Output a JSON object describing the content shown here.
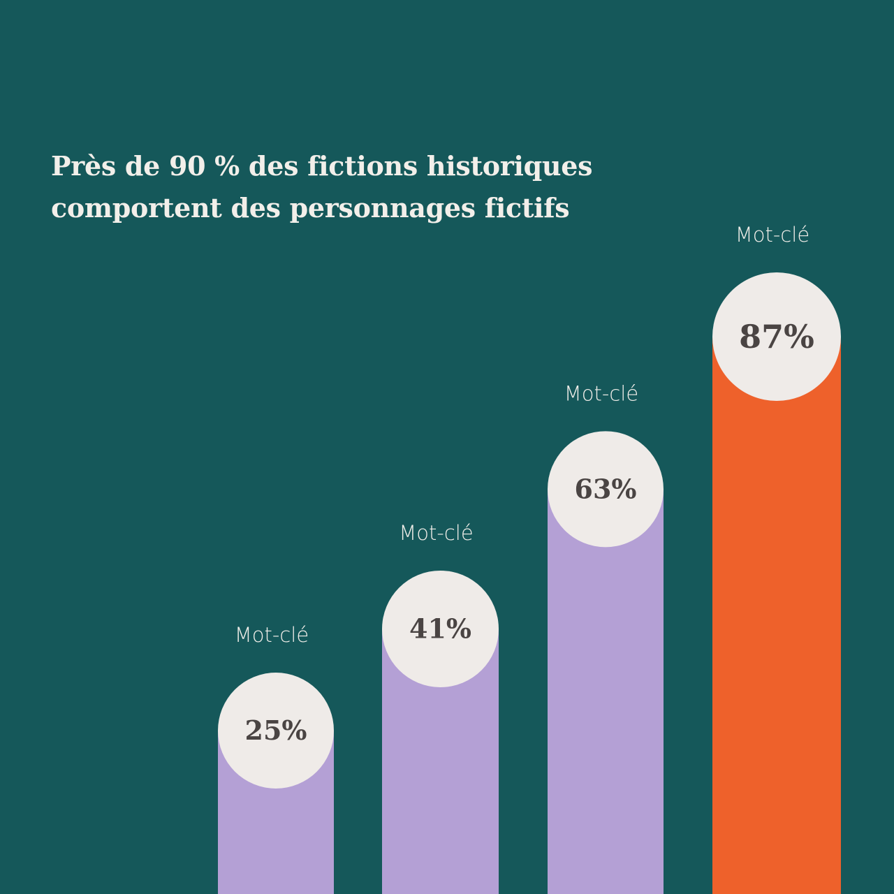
{
  "title_lines": [
    "Près de 90 % des fictions historiques",
    "comportent des personnages fictifs"
  ],
  "colors": {
    "background": "#15585a",
    "bar": "#b4a0d5",
    "highlight": "#ee612b",
    "circle": "#efebe8",
    "value_text": "#4a4443",
    "label_text": "#f2efea"
  },
  "chart_data": {
    "type": "bar",
    "title": "Près de 90 % des fictions historiques comportent des personnages fictifs",
    "categories": [
      "Mot-clé",
      "Mot-clé",
      "Mot-clé",
      "Mot-clé"
    ],
    "values": [
      25,
      41,
      63,
      87
    ],
    "value_labels": [
      "25%",
      "41%",
      "63%",
      "87%"
    ],
    "highlight_index": 3,
    "unit": "%",
    "xlabel": "",
    "ylabel": "",
    "grid": false
  }
}
